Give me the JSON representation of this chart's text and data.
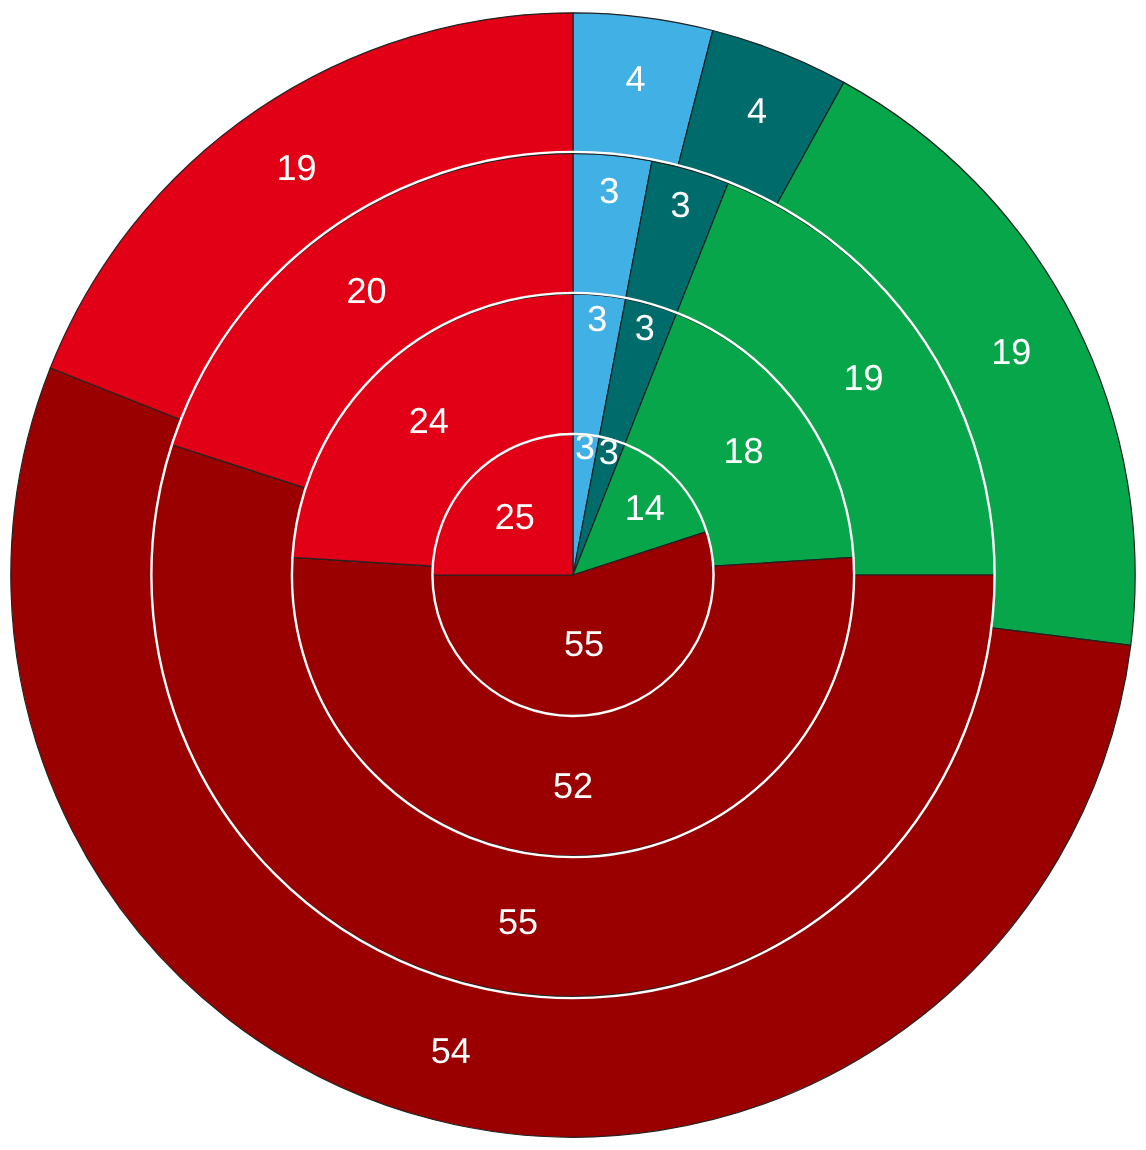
{
  "chart_data": {
    "type": "donut",
    "categories": [
      null,
      null,
      null,
      null,
      null
    ],
    "colors": [
      "#41b0e4",
      "#006b6b",
      "#07a64a",
      "#9b0000",
      "#e20016"
    ],
    "series": [
      {
        "values": [
          3,
          3,
          14,
          55,
          25
        ]
      },
      {
        "values": [
          3,
          3,
          18,
          52,
          24
        ]
      },
      {
        "values": [
          3,
          3,
          19,
          55,
          20
        ]
      },
      {
        "values": [
          4,
          4,
          19,
          54,
          19
        ]
      }
    ],
    "data_labels": true,
    "legend": false
  }
}
